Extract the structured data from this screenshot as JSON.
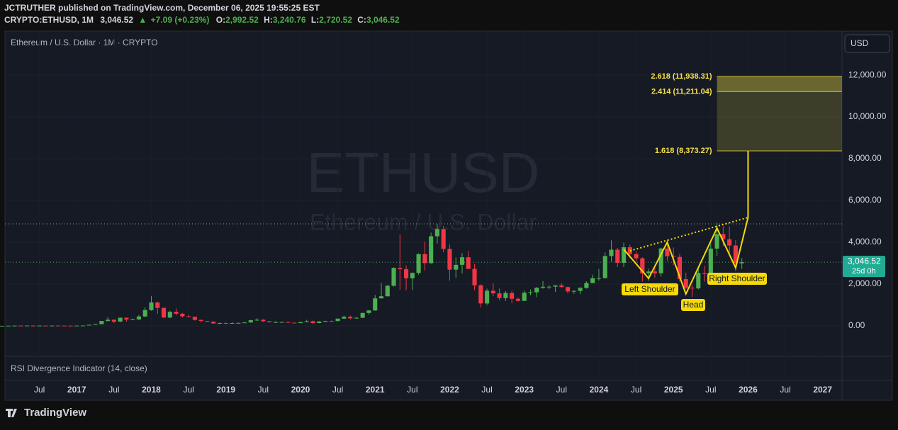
{
  "header": {
    "published": "JCTRUTHER published on TradingView.com, December 06, 2025 19:55:25 EST",
    "symbol": "CRYPTO:ETHUSD, 1M",
    "price": "3,046.52",
    "change": "+7.09 (+0.23%)",
    "o_label": "O:",
    "o": "2,992.52",
    "h_label": "H:",
    "h": "3,240.76",
    "l_label": "L:",
    "l": "2,720.52",
    "c_label": "C:",
    "c": "3,046.52"
  },
  "legend": "Ethereum / U.S. Dollar · 1M · CRYPTO",
  "currency": "USD",
  "watermark": "ETHUSD",
  "watermark_sub": "Ethereum / U.S. Dollar",
  "rsi_label": "RSI Divergence Indicator (14, close)",
  "brand": "TradingView",
  "chart_data": {
    "type": "candlestick",
    "up_color": "#4caf50",
    "down_color": "#f23645",
    "grid": true,
    "xlim": [
      "2016-01",
      "2027-04"
    ],
    "ylim": [
      -1460,
      13970
    ],
    "yticks": [
      {
        "value": 0,
        "label": "0.00"
      },
      {
        "value": 2000,
        "label": "2,000.00"
      },
      {
        "value": 4000,
        "label": "4,000.00"
      },
      {
        "value": 6000,
        "label": "6,000.00"
      },
      {
        "value": 8000,
        "label": "8,000.00"
      },
      {
        "value": 10000,
        "label": "10,000.00"
      },
      {
        "value": 12000,
        "label": "12,000.00"
      }
    ],
    "xticks": [
      {
        "value": "2016-07",
        "label": "Jul"
      },
      {
        "value": "2017-01",
        "label": "2017"
      },
      {
        "value": "2017-07",
        "label": "Jul"
      },
      {
        "value": "2018-01",
        "label": "2018"
      },
      {
        "value": "2018-07",
        "label": "Jul"
      },
      {
        "value": "2019-01",
        "label": "2019"
      },
      {
        "value": "2019-07",
        "label": "Jul"
      },
      {
        "value": "2020-01",
        "label": "2020"
      },
      {
        "value": "2020-07",
        "label": "Jul"
      },
      {
        "value": "2021-01",
        "label": "2021"
      },
      {
        "value": "2021-07",
        "label": "Jul"
      },
      {
        "value": "2022-01",
        "label": "2022"
      },
      {
        "value": "2022-07",
        "label": "Jul"
      },
      {
        "value": "2023-01",
        "label": "2023"
      },
      {
        "value": "2023-07",
        "label": "Jul"
      },
      {
        "value": "2024-01",
        "label": "2024"
      },
      {
        "value": "2024-07",
        "label": "Jul"
      },
      {
        "value": "2025-01",
        "label": "2025"
      },
      {
        "value": "2025-07",
        "label": "Jul"
      },
      {
        "value": "2026-01",
        "label": "2026"
      },
      {
        "value": "2026-07",
        "label": "Jul"
      },
      {
        "value": "2027-01",
        "label": "2027"
      }
    ],
    "x": [
      "2016-01",
      "2016-02",
      "2016-03",
      "2016-04",
      "2016-05",
      "2016-06",
      "2016-07",
      "2016-08",
      "2016-09",
      "2016-10",
      "2016-11",
      "2016-12",
      "2017-01",
      "2017-02",
      "2017-03",
      "2017-04",
      "2017-05",
      "2017-06",
      "2017-07",
      "2017-08",
      "2017-09",
      "2017-10",
      "2017-11",
      "2017-12",
      "2018-01",
      "2018-02",
      "2018-03",
      "2018-04",
      "2018-05",
      "2018-06",
      "2018-07",
      "2018-08",
      "2018-09",
      "2018-10",
      "2018-11",
      "2018-12",
      "2019-01",
      "2019-02",
      "2019-03",
      "2019-04",
      "2019-05",
      "2019-06",
      "2019-07",
      "2019-08",
      "2019-09",
      "2019-10",
      "2019-11",
      "2019-12",
      "2020-01",
      "2020-02",
      "2020-03",
      "2020-04",
      "2020-05",
      "2020-06",
      "2020-07",
      "2020-08",
      "2020-09",
      "2020-10",
      "2020-11",
      "2020-12",
      "2021-01",
      "2021-02",
      "2021-03",
      "2021-04",
      "2021-05",
      "2021-06",
      "2021-07",
      "2021-08",
      "2021-09",
      "2021-10",
      "2021-11",
      "2021-12",
      "2022-01",
      "2022-02",
      "2022-03",
      "2022-04",
      "2022-05",
      "2022-06",
      "2022-07",
      "2022-08",
      "2022-09",
      "2022-10",
      "2022-11",
      "2022-12",
      "2023-01",
      "2023-02",
      "2023-03",
      "2023-04",
      "2023-05",
      "2023-06",
      "2023-07",
      "2023-08",
      "2023-09",
      "2023-10",
      "2023-11",
      "2023-12",
      "2024-01",
      "2024-02",
      "2024-03",
      "2024-04",
      "2024-05",
      "2024-06",
      "2024-07",
      "2024-08",
      "2024-09",
      "2024-10",
      "2024-11",
      "2024-12",
      "2025-01",
      "2025-02",
      "2025-03",
      "2025-04",
      "2025-05",
      "2025-06",
      "2025-07",
      "2025-08",
      "2025-09",
      "2025-10",
      "2025-11",
      "2025-12"
    ],
    "ohlc": [
      [
        0.9,
        2.8,
        0.9,
        2.2
      ],
      [
        2.2,
        6.7,
        2.1,
        6.3
      ],
      [
        6.3,
        15,
        5.8,
        11.4
      ],
      [
        11.4,
        12,
        7.2,
        8.8
      ],
      [
        8.8,
        14.3,
        8.3,
        14
      ],
      [
        14,
        21,
        10,
        12.3
      ],
      [
        12.3,
        14.8,
        10.5,
        12.6
      ],
      [
        12.6,
        12.9,
        10.5,
        11.8
      ],
      [
        11.8,
        14.5,
        11.2,
        13.2
      ],
      [
        13.2,
        14.1,
        10.8,
        11.3
      ],
      [
        11.3,
        11.7,
        7.9,
        8.2
      ],
      [
        8.2,
        8.4,
        6,
        8
      ],
      [
        8,
        11.2,
        7.9,
        10.7
      ],
      [
        10.7,
        16,
        10.3,
        15.7
      ],
      [
        15.7,
        55,
        15.4,
        50
      ],
      [
        50,
        80,
        43,
        80
      ],
      [
        80,
        230,
        78,
        230
      ],
      [
        230,
        420,
        210,
        293
      ],
      [
        293,
        300,
        130,
        201
      ],
      [
        201,
        400,
        190,
        388
      ],
      [
        388,
        395,
        200,
        302
      ],
      [
        302,
        350,
        278,
        305
      ],
      [
        305,
        525,
        287,
        447
      ],
      [
        447,
        880,
        418,
        756
      ],
      [
        756,
        1420,
        720,
        1118
      ],
      [
        1118,
        1160,
        570,
        856
      ],
      [
        856,
        880,
        365,
        397
      ],
      [
        397,
        720,
        365,
        670
      ],
      [
        670,
        830,
        500,
        578
      ],
      [
        578,
        620,
        405,
        455
      ],
      [
        455,
        515,
        425,
        433
      ],
      [
        433,
        436,
        250,
        283
      ],
      [
        283,
        300,
        165,
        232
      ],
      [
        232,
        235,
        190,
        197
      ],
      [
        197,
        225,
        100,
        113
      ],
      [
        113,
        160,
        82,
        133
      ],
      [
        133,
        160,
        100,
        107
      ],
      [
        107,
        165,
        102,
        136
      ],
      [
        136,
        147,
        126,
        141
      ],
      [
        141,
        185,
        140,
        160
      ],
      [
        160,
        286,
        157,
        268
      ],
      [
        268,
        365,
        230,
        290
      ],
      [
        290,
        318,
        190,
        218
      ],
      [
        218,
        238,
        165,
        172
      ],
      [
        172,
        225,
        152,
        180
      ],
      [
        180,
        198,
        158,
        182
      ],
      [
        182,
        196,
        140,
        152
      ],
      [
        152,
        155,
        118,
        130
      ],
      [
        130,
        184,
        126,
        179
      ],
      [
        179,
        288,
        178,
        217
      ],
      [
        217,
        253,
        90,
        133
      ],
      [
        133,
        227,
        130,
        206
      ],
      [
        206,
        245,
        180,
        231
      ],
      [
        231,
        255,
        216,
        226
      ],
      [
        226,
        350,
        222,
        345
      ],
      [
        345,
        490,
        335,
        434
      ],
      [
        434,
        488,
        308,
        360
      ],
      [
        360,
        420,
        337,
        386
      ],
      [
        386,
        622,
        370,
        615
      ],
      [
        615,
        755,
        540,
        737
      ],
      [
        737,
        1475,
        715,
        1314
      ],
      [
        1314,
        2040,
        1300,
        1416
      ],
      [
        1416,
        1950,
        1400,
        1918
      ],
      [
        1918,
        2800,
        1880,
        2773
      ],
      [
        2773,
        4380,
        1730,
        2714
      ],
      [
        2714,
        2890,
        1700,
        2275
      ],
      [
        2275,
        2550,
        1720,
        2536
      ],
      [
        2536,
        3470,
        2450,
        3433
      ],
      [
        3433,
        4030,
        2650,
        3001
      ],
      [
        3001,
        4460,
        2970,
        4288
      ],
      [
        4288,
        4870,
        3940,
        4631
      ],
      [
        4631,
        4780,
        3520,
        3683
      ],
      [
        3683,
        3900,
        2160,
        2688
      ],
      [
        2688,
        3280,
        2300,
        2920
      ],
      [
        2920,
        3480,
        2500,
        3283
      ],
      [
        3283,
        3580,
        2710,
        2727
      ],
      [
        2727,
        2960,
        1700,
        1942
      ],
      [
        1942,
        1980,
        880,
        1071
      ],
      [
        1071,
        1780,
        1000,
        1679
      ],
      [
        1679,
        2030,
        1420,
        1553
      ],
      [
        1553,
        1790,
        1220,
        1328
      ],
      [
        1328,
        1660,
        1190,
        1572
      ],
      [
        1572,
        1680,
        1080,
        1296
      ],
      [
        1296,
        1350,
        1160,
        1196
      ],
      [
        1196,
        1680,
        1190,
        1585
      ],
      [
        1585,
        1740,
        1460,
        1605
      ],
      [
        1605,
        1860,
        1370,
        1822
      ],
      [
        1822,
        2140,
        1780,
        1870
      ],
      [
        1870,
        1930,
        1760,
        1874
      ],
      [
        1874,
        1940,
        1630,
        1934
      ],
      [
        1934,
        2030,
        1840,
        1856
      ],
      [
        1856,
        1870,
        1550,
        1646
      ],
      [
        1646,
        1700,
        1530,
        1671
      ],
      [
        1671,
        1860,
        1520,
        1815
      ],
      [
        1815,
        2130,
        1780,
        2050
      ],
      [
        2050,
        2450,
        2040,
        2282
      ],
      [
        2282,
        2720,
        2170,
        2283
      ],
      [
        2283,
        3520,
        2270,
        3340
      ],
      [
        3340,
        4090,
        3060,
        3645
      ],
      [
        3645,
        3730,
        2810,
        3014
      ],
      [
        3014,
        3980,
        2820,
        3762
      ],
      [
        3762,
        3890,
        3240,
        3432
      ],
      [
        3432,
        3560,
        3080,
        3232
      ],
      [
        3232,
        3280,
        2120,
        2513
      ],
      [
        2513,
        2730,
        2150,
        2602
      ],
      [
        2602,
        2770,
        2310,
        2518
      ],
      [
        2518,
        3740,
        2360,
        3703
      ],
      [
        3703,
        4110,
        3100,
        3332
      ],
      [
        3332,
        3750,
        2900,
        3300
      ],
      [
        3300,
        3440,
        2120,
        2237
      ],
      [
        2237,
        2550,
        1760,
        1822
      ],
      [
        1822,
        1960,
        1380,
        1793
      ],
      [
        1793,
        2790,
        1750,
        2528
      ],
      [
        2528,
        2880,
        2110,
        2486
      ],
      [
        2486,
        3940,
        2370,
        3697
      ],
      [
        3697,
        4950,
        3350,
        4392
      ],
      [
        4392,
        4770,
        3820,
        4145
      ],
      [
        4145,
        4760,
        3440,
        3847
      ],
      [
        3847,
        4100,
        2620,
        2992
      ],
      [
        2992.52,
        3240.76,
        2720.52,
        3046.52
      ]
    ],
    "last_price_label": "3,046.52",
    "countdown": "25d 0h",
    "reference_line": 4880,
    "fib_start": "2025-08",
    "fib_levels": [
      {
        "label": "2.618 (11,938.31)",
        "value": 11938.31
      },
      {
        "label": "2.414 (11,211.04)",
        "value": 11211.04
      },
      {
        "label": "1.618 (8,373.27)",
        "value": 8373.27
      }
    ],
    "pattern": {
      "color": "#f5d90a",
      "x": [
        "2024-05",
        "2024-09",
        "2024-12",
        "2025-03",
        "2025-08",
        "2025-11",
        "2026-01",
        "2026-01"
      ],
      "y": [
        3661,
        2271,
        4000,
        1525,
        4678,
        2780,
        5186,
        8373
      ]
    },
    "neckline": {
      "x": [
        "2024-06",
        "2026-01"
      ],
      "y": [
        3590,
        5186
      ]
    },
    "annotations": [
      "Left Shoulder",
      "Head",
      "Right Shoulder"
    ]
  }
}
